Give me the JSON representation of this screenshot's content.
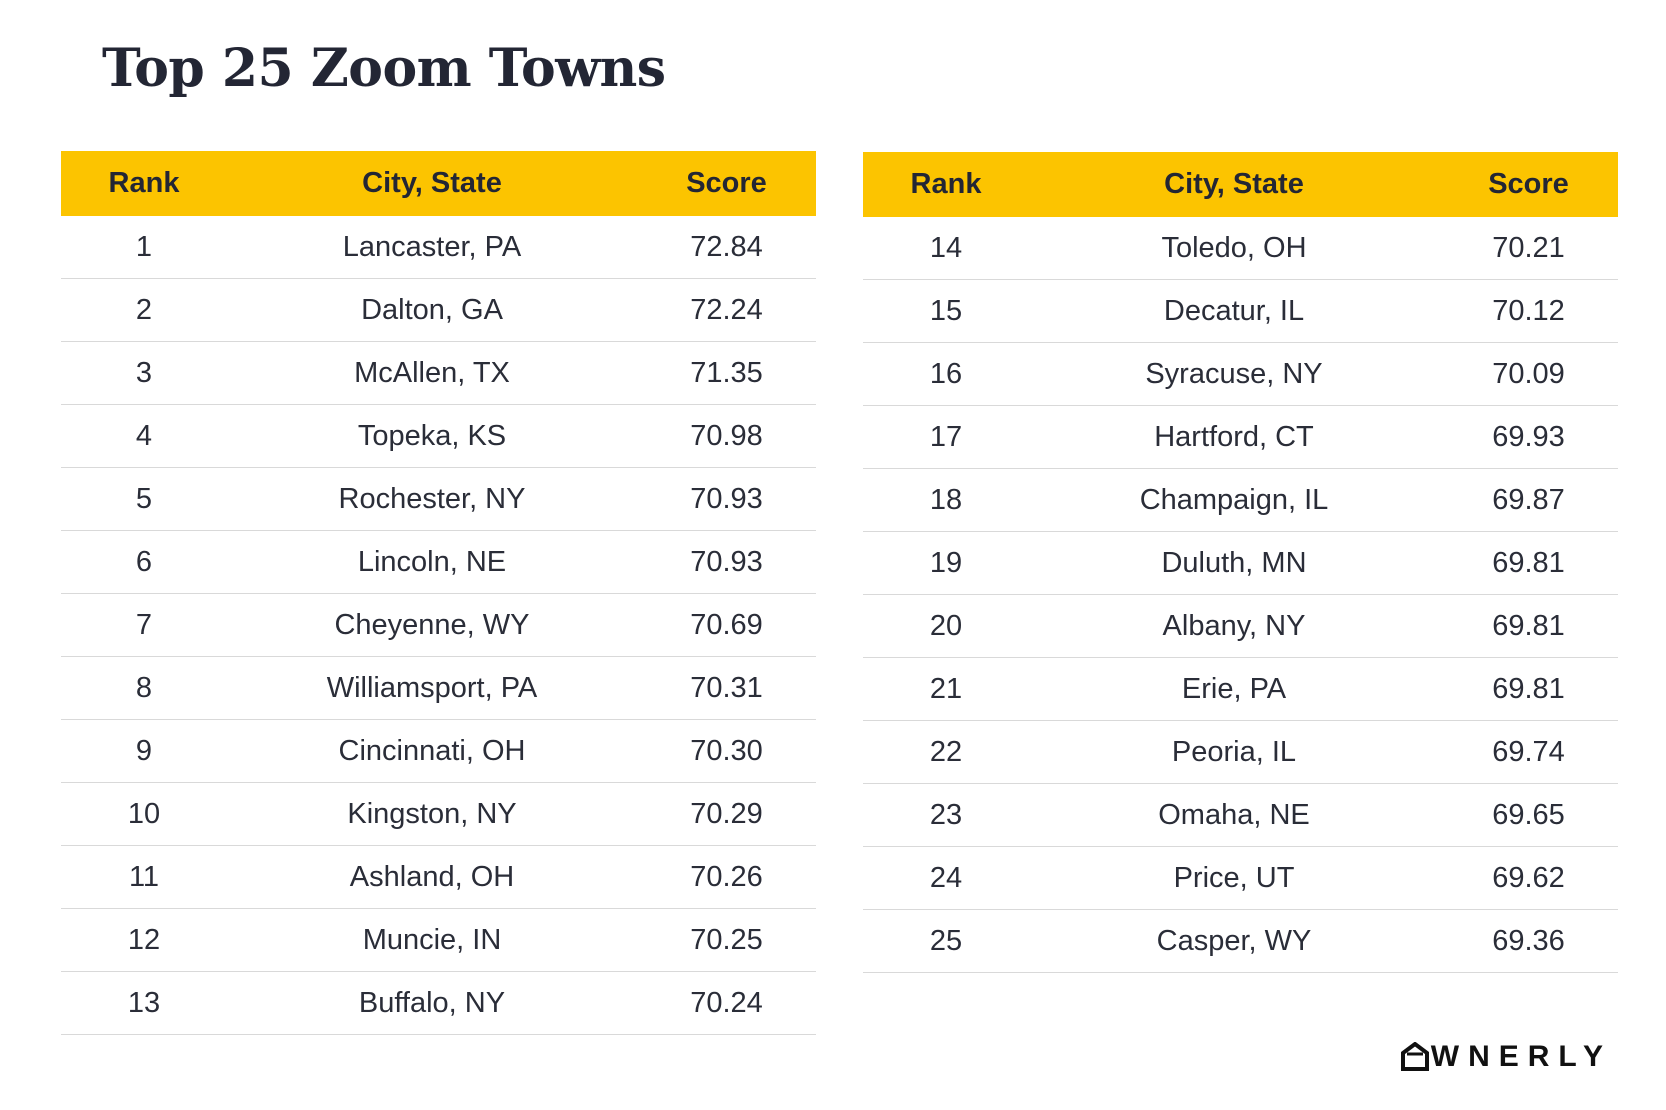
{
  "title": "Top 25 Zoom Towns",
  "columns": {
    "rank": "Rank",
    "city": "City, State",
    "score": "Score"
  },
  "chart_data": {
    "type": "table",
    "title": "Top 25 Zoom Towns",
    "columns": [
      "Rank",
      "City, State",
      "Score"
    ],
    "rows": [
      {
        "rank": "1",
        "city": "Lancaster, PA",
        "score": "72.84"
      },
      {
        "rank": "2",
        "city": "Dalton, GA",
        "score": "72.24"
      },
      {
        "rank": "3",
        "city": "McAllen, TX",
        "score": "71.35"
      },
      {
        "rank": "4",
        "city": "Topeka, KS",
        "score": "70.98"
      },
      {
        "rank": "5",
        "city": "Rochester, NY",
        "score": "70.93"
      },
      {
        "rank": "6",
        "city": "Lincoln, NE",
        "score": "70.93"
      },
      {
        "rank": "7",
        "city": "Cheyenne, WY",
        "score": "70.69"
      },
      {
        "rank": "8",
        "city": "Williamsport, PA",
        "score": "70.31"
      },
      {
        "rank": "9",
        "city": "Cincinnati, OH",
        "score": "70.30"
      },
      {
        "rank": "10",
        "city": "Kingston, NY",
        "score": "70.29"
      },
      {
        "rank": "11",
        "city": "Ashland, OH",
        "score": "70.26"
      },
      {
        "rank": "12",
        "city": "Muncie, IN",
        "score": "70.25"
      },
      {
        "rank": "13",
        "city": "Buffalo, NY",
        "score": "70.24"
      },
      {
        "rank": "14",
        "city": "Toledo, OH",
        "score": "70.21"
      },
      {
        "rank": "15",
        "city": "Decatur, IL",
        "score": "70.12"
      },
      {
        "rank": "16",
        "city": "Syracuse, NY",
        "score": "70.09"
      },
      {
        "rank": "17",
        "city": "Hartford, CT",
        "score": "69.93"
      },
      {
        "rank": "18",
        "city": "Champaign, IL",
        "score": "69.87"
      },
      {
        "rank": "19",
        "city": "Duluth, MN",
        "score": "69.81"
      },
      {
        "rank": "20",
        "city": "Albany, NY",
        "score": "69.81"
      },
      {
        "rank": "21",
        "city": "Erie, PA",
        "score": "69.81"
      },
      {
        "rank": "22",
        "city": "Peoria, IL",
        "score": "69.74"
      },
      {
        "rank": "23",
        "city": "Omaha, NE",
        "score": "69.65"
      },
      {
        "rank": "24",
        "city": "Price, UT",
        "score": "69.62"
      },
      {
        "rank": "25",
        "city": "Casper, WY",
        "score": "69.36"
      }
    ]
  },
  "colors": {
    "header_bg": "#fcc400",
    "divider": "#d9d9d9",
    "text": "#232634"
  },
  "logo": {
    "text": "WNERLY",
    "icon": "house-o-icon"
  }
}
